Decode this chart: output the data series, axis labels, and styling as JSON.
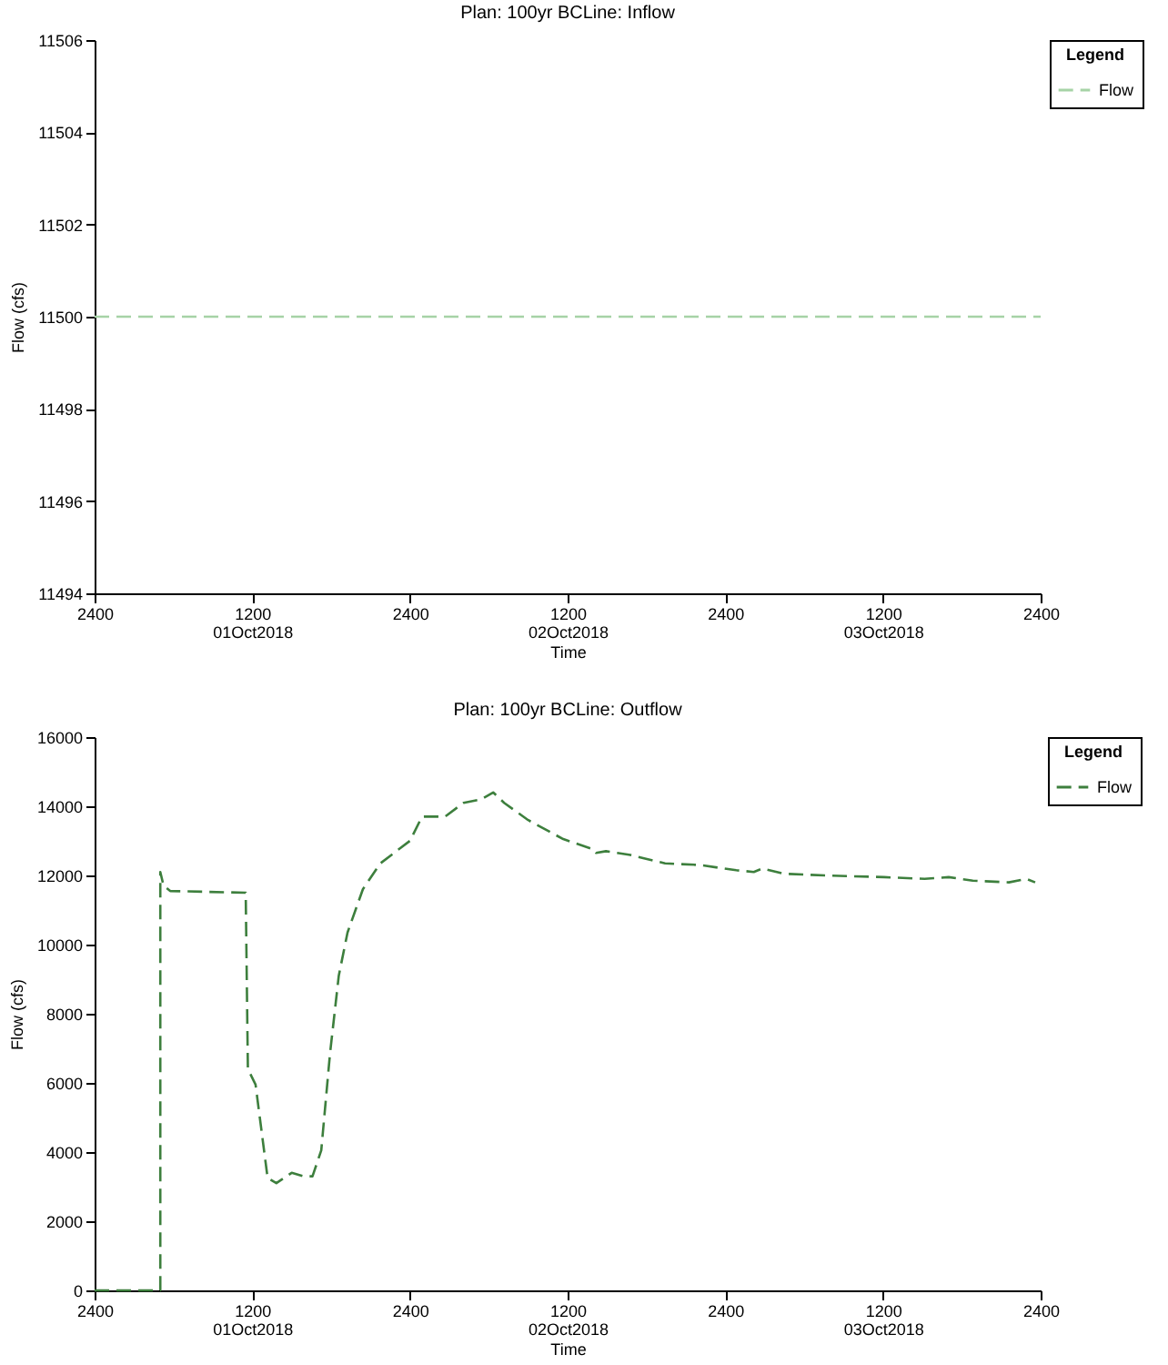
{
  "chart_data": [
    {
      "type": "line",
      "title": "Plan: 100yr BCLine: Inflow",
      "xlabel": "Time",
      "ylabel": "Flow (cfs)",
      "legend_title": "Legend",
      "legend": "top right",
      "line_style": "dashed",
      "x": [
        "2018-10-01T00:00",
        "2018-10-04T00:00"
      ],
      "series": [
        {
          "name": "Flow",
          "color": "#a6d3a6",
          "values": [
            11500,
            11500
          ]
        }
      ],
      "xlim": [
        "2018-10-01T00:00",
        "2018-10-04T00:00"
      ],
      "xticks": [
        {
          "value": "2018-10-01T00:00",
          "label": "2400"
        },
        {
          "value": "2018-10-01T12:00",
          "label": "1200\n01Oct2018"
        },
        {
          "value": "2018-10-02T00:00",
          "label": "2400"
        },
        {
          "value": "2018-10-02T12:00",
          "label": "1200\n02Oct2018"
        },
        {
          "value": "2018-10-03T00:00",
          "label": "2400"
        },
        {
          "value": "2018-10-03T12:00",
          "label": "1200\n03Oct2018"
        },
        {
          "value": "2018-10-04T00:00",
          "label": "2400"
        }
      ],
      "ylim": [
        11494,
        11506
      ],
      "yticks": [
        11494,
        11496,
        11498,
        11500,
        11502,
        11504,
        11506
      ]
    },
    {
      "type": "line",
      "title": "Plan: 100yr BCLine: Outflow",
      "xlabel": "Time",
      "ylabel": "Flow (cfs)",
      "legend_title": "Legend",
      "legend": "top right",
      "line_style": "dashed",
      "x": [
        "2018-10-01T00:00",
        "2018-10-01T05:00",
        "2018-10-01T05:00",
        "2018-10-01T05:15",
        "2018-10-01T05:45",
        "2018-10-01T11:30",
        "2018-10-01T11:40",
        "2018-10-01T12:15",
        "2018-10-01T13:10",
        "2018-10-01T13:50",
        "2018-10-01T15:00",
        "2018-10-01T15:55",
        "2018-10-01T16:35",
        "2018-10-01T17:15",
        "2018-10-01T17:55",
        "2018-10-01T18:35",
        "2018-10-01T19:15",
        "2018-10-01T20:25",
        "2018-10-01T21:45",
        "2018-10-02T00:00",
        "2018-10-02T00:55",
        "2018-10-02T02:40",
        "2018-10-02T04:05",
        "2018-10-02T05:25",
        "2018-10-02T06:20",
        "2018-10-02T07:10",
        "2018-10-02T09:00",
        "2018-10-02T11:40",
        "2018-10-02T14:00",
        "2018-10-02T14:10",
        "2018-10-02T14:55",
        "2018-10-02T16:40",
        "2018-10-02T19:25",
        "2018-10-02T22:05",
        "2018-10-03T00:50",
        "2018-10-03T02:10",
        "2018-10-03T02:50",
        "2018-10-03T04:25",
        "2018-10-03T07:35",
        "2018-10-03T12:05",
        "2018-10-03T15:10",
        "2018-10-03T17:00",
        "2018-10-03T18:50",
        "2018-10-03T21:35",
        "2018-10-03T22:55",
        "2018-10-03T23:35"
      ],
      "series": [
        {
          "name": "Flow",
          "color": "#3d7f3d",
          "values": [
            0,
            0,
            12100,
            11700,
            11550,
            11500,
            6400,
            5950,
            3250,
            3100,
            3400,
            3300,
            3300,
            4050,
            6850,
            9100,
            10350,
            11600,
            12350,
            13000,
            13700,
            13700,
            14100,
            14200,
            14400,
            14100,
            13600,
            13050,
            12750,
            12650,
            12700,
            12600,
            12350,
            12300,
            12150,
            12100,
            12200,
            12050,
            12000,
            11950,
            11900,
            11950,
            11850,
            11800,
            11900,
            11800
          ]
        }
      ],
      "xlim": [
        "2018-10-01T00:00",
        "2018-10-04T00:00"
      ],
      "xticks": [
        {
          "value": "2018-10-01T00:00",
          "label": "2400"
        },
        {
          "value": "2018-10-01T12:00",
          "label": "1200\n01Oct2018"
        },
        {
          "value": "2018-10-02T00:00",
          "label": "2400"
        },
        {
          "value": "2018-10-02T12:00",
          "label": "1200\n02Oct2018"
        },
        {
          "value": "2018-10-03T00:00",
          "label": "2400"
        },
        {
          "value": "2018-10-03T12:00",
          "label": "1200\n03Oct2018"
        },
        {
          "value": "2018-10-04T00:00",
          "label": "2400"
        }
      ],
      "ylim": [
        0,
        16000
      ],
      "yticks": [
        0,
        2000,
        4000,
        6000,
        8000,
        10000,
        12000,
        14000,
        16000
      ]
    }
  ]
}
